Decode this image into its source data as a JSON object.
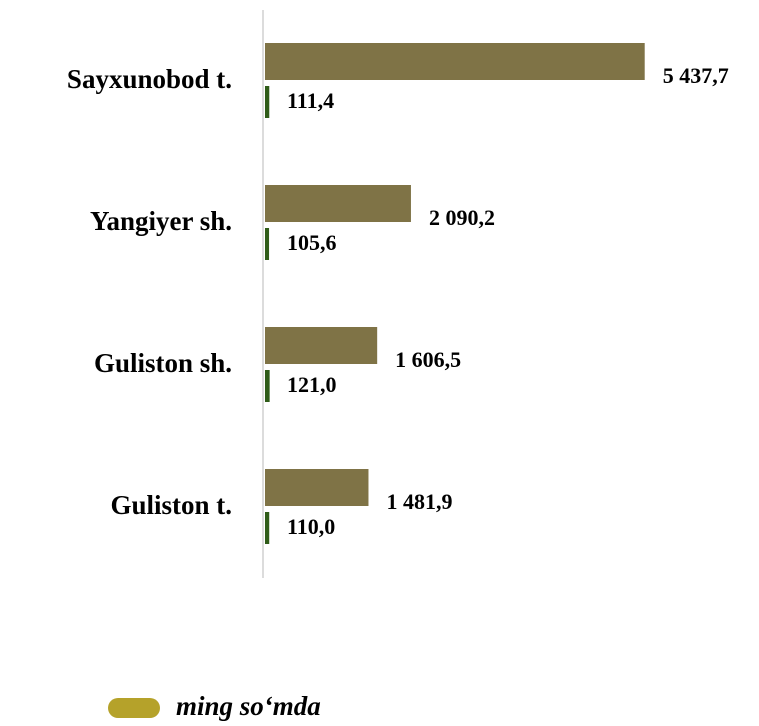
{
  "chart_data": {
    "type": "bar",
    "orientation": "horizontal",
    "categories": [
      "Sayxunobod t.",
      "Yangiyer sh.",
      "Guliston sh.",
      "Guliston t."
    ],
    "series": [
      {
        "name": "ming so‘mda",
        "color": "#7f7346",
        "legend_color": "#b5a22a",
        "values": [
          5437.7,
          2090.2,
          1606.5,
          1481.9
        ],
        "value_labels": [
          "5 437,7",
          "2 090,2",
          "1 606,5",
          "1 481,9"
        ]
      },
      {
        "color": "#2f5c18",
        "values": [
          111.4,
          105.6,
          121.0,
          110.0
        ],
        "value_labels": [
          "111,4",
          "105,6",
          "121,0",
          "110,0"
        ]
      }
    ],
    "xlim": [
      0,
      5800
    ]
  }
}
